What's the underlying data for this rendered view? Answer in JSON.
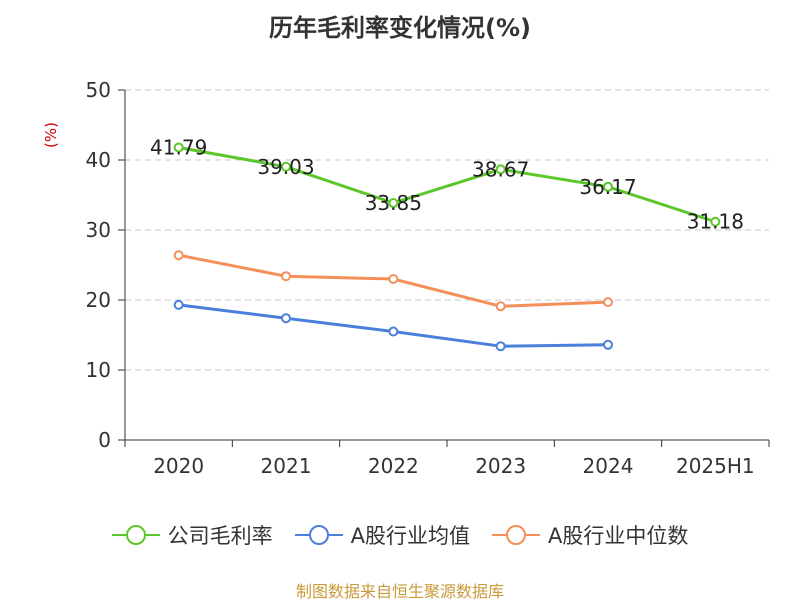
{
  "chart_data": {
    "type": "line",
    "title": "历年毛利率变化情况(%)",
    "ylabel": "(%)",
    "xlabel": "",
    "categories": [
      "2020",
      "2021",
      "2022",
      "2023",
      "2024",
      "2025H1"
    ],
    "ylim": [
      0,
      50
    ],
    "yticks": [
      0,
      10,
      20,
      30,
      40,
      50
    ],
    "grid": true,
    "legend_position": "bottom",
    "series": [
      {
        "name": "公司毛利率",
        "color": "#5cc72a",
        "values": [
          41.79,
          39.03,
          33.85,
          38.67,
          36.17,
          31.18
        ],
        "labels": [
          "41.79",
          "39.03",
          "33.85",
          "38.67",
          "36.17",
          "31.18"
        ]
      },
      {
        "name": "A股行业均值",
        "color": "#4a7fdc",
        "values": [
          19.3,
          17.4,
          15.5,
          13.4,
          13.6,
          null
        ]
      },
      {
        "name": "A股行业中位数",
        "color": "#f58f59",
        "values": [
          26.4,
          23.4,
          23.0,
          19.1,
          19.7,
          null
        ]
      }
    ],
    "source": "制图数据来自恒生聚源数据库"
  }
}
